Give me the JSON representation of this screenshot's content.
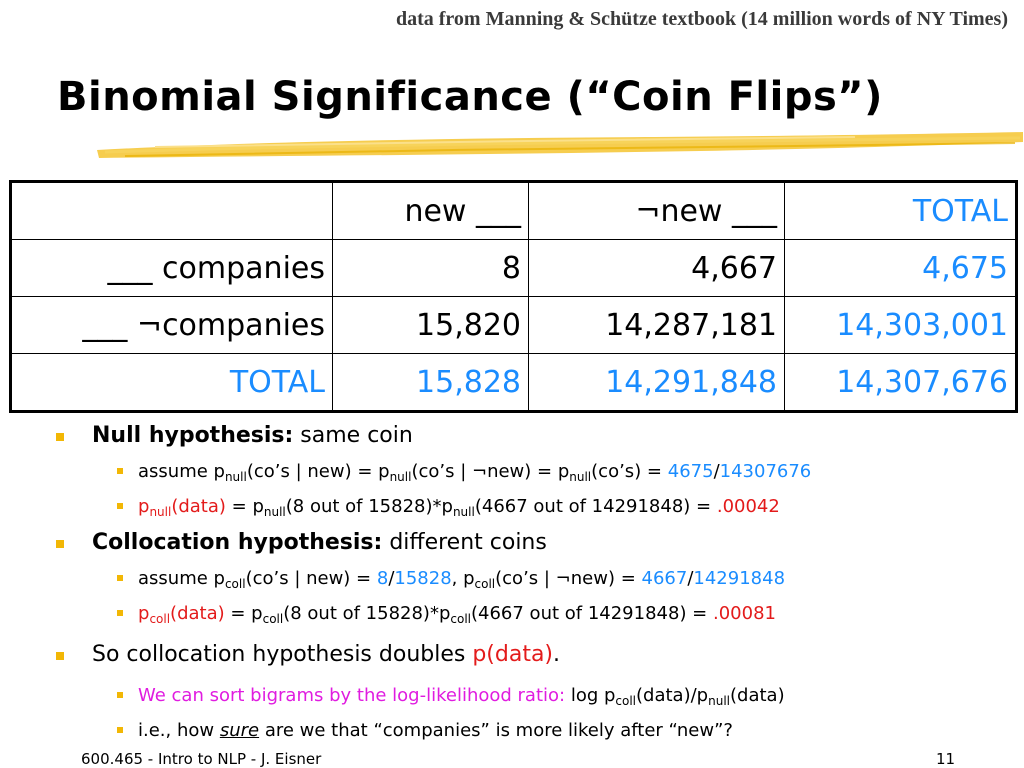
{
  "source_note": "data from Manning & Schütze textbook (14 million words of NY Times)",
  "title": "Binomial Significance (“Coin Flips”)",
  "table": {
    "header": [
      "",
      "new ___",
      "¬new ___",
      "TOTAL"
    ],
    "rows": [
      [
        "___ companies",
        "8",
        "4,667",
        "4,675"
      ],
      [
        "___ ¬companies",
        "15,820",
        "14,287,181",
        "14,303,001"
      ],
      [
        "TOTAL",
        "15,828",
        "14,291,848",
        "14,307,676"
      ]
    ]
  },
  "bullets": {
    "null_label": "Null hypothesis:",
    "null_text": " same coin",
    "null_assume_1": "assume p",
    "null_sub": "null",
    "null_assume_2": "(co’s | new) = p",
    "null_assume_3": "(co’s | ¬new) = p",
    "null_assume_4": "(co’s) = ",
    "null_num": "4675",
    "slash": "/",
    "null_den": "14307676",
    "p_data_1": "p",
    "p_data_2": "(data)",
    "null_calc_1": " = p",
    "null_calc_2": "(8 out of 15828)*p",
    "null_calc_3": "(4667 out of 14291848) = ",
    "null_result": ".00042",
    "coll_label": "Collocation hypothesis:",
    "coll_text": " different coins",
    "coll_sub": "coll",
    "coll_assume_1": "assume p",
    "coll_assume_2": "(co’s | new) = ",
    "coll_n1": "8",
    "coll_d1": "15828",
    "coll_assume_3": ", p",
    "coll_assume_4": "(co’s | ¬new) = ",
    "coll_n2": "4667",
    "coll_d2": "14291848",
    "coll_result": ".00081",
    "so_text": "So collocation hypothesis doubles ",
    "so_red": "p(data)",
    "so_end": ".",
    "sort_text": "We can sort bigrams by the log-likelihood ratio: ",
    "sort_log": "log p",
    "sort_mid": "(data)/p",
    "sort_end": "(data)",
    "ie_1": "i.e., how ",
    "ie_sure": "sure",
    "ie_2": " are we that “companies” is more likely after “new”?"
  },
  "footer": {
    "course": "600.465 - Intro to NLP - J. Eisner",
    "page": "11"
  },
  "colors": {
    "accent_blue": "#1a8cff",
    "result_red": "#e31b1b",
    "magenta": "#e01ce0",
    "bullet_yellow": "#f2b705"
  }
}
